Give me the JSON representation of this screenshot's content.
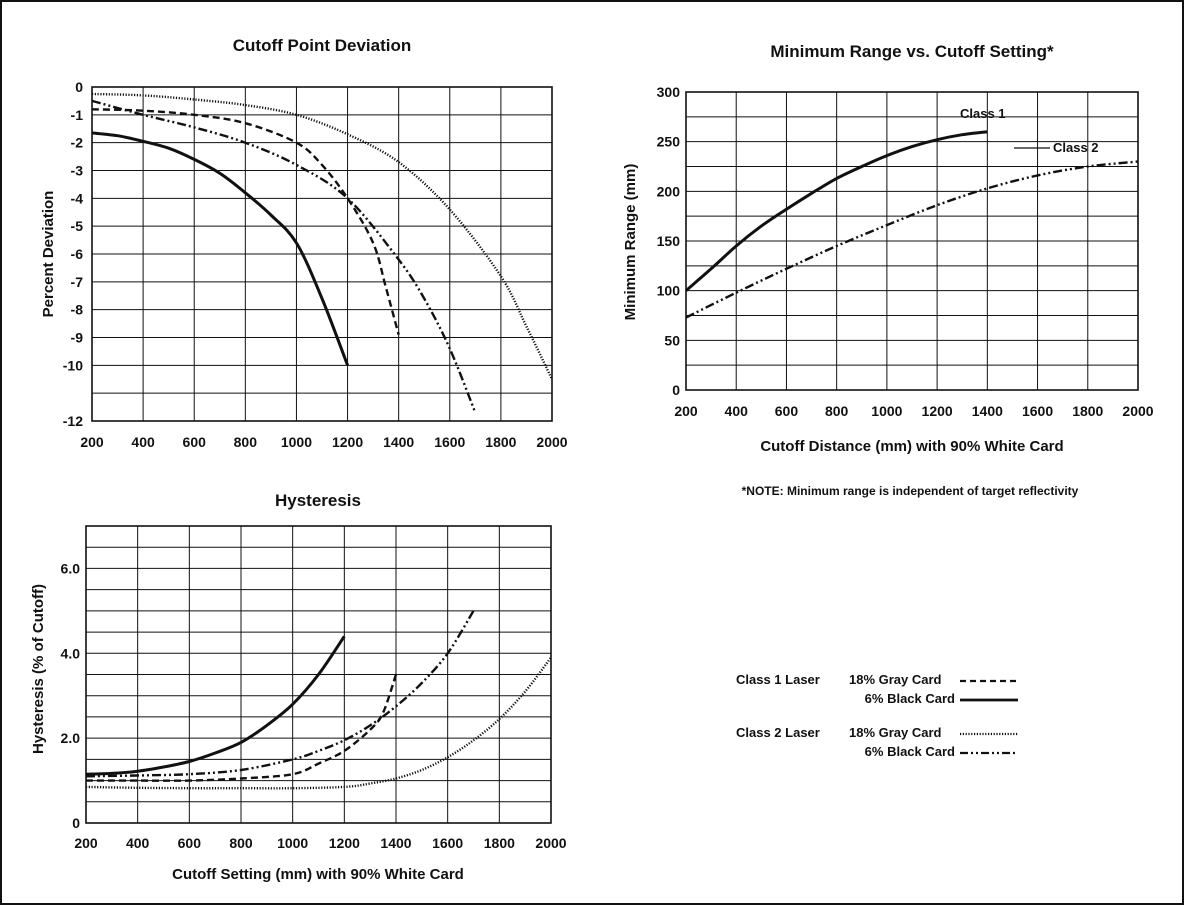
{
  "chart_data": [
    {
      "type": "line",
      "title": "Cutoff Point Deviation",
      "xlabel": "",
      "ylabel": "Percent Deviation",
      "xlim": [
        200,
        2000
      ],
      "ylim": [
        -12,
        0
      ],
      "xticks": [
        "200",
        "400",
        "600",
        "800",
        "1000",
        "1200",
        "1400",
        "1600",
        "1800",
        "2000"
      ],
      "yticks": [
        "0",
        "-1",
        "-2",
        "-3",
        "-4",
        "-5",
        "-6",
        "-7",
        "-8",
        "-9",
        "-10",
        "-12"
      ],
      "grid": true,
      "series": [
        {
          "name": "Class 1 Laser 18% Gray Card",
          "style": "dashed",
          "x": [
            200,
            400,
            600,
            800,
            1000,
            1100,
            1200,
            1300,
            1350,
            1400
          ],
          "y": [
            -0.8,
            -0.85,
            -1.0,
            -1.3,
            -2.0,
            -2.8,
            -4.0,
            -5.6,
            -7.2,
            -8.9
          ]
        },
        {
          "name": "Class 1 Laser 6% Black Card",
          "style": "solid",
          "x": [
            200,
            300,
            400,
            500,
            600,
            700,
            800,
            900,
            1000,
            1100,
            1200
          ],
          "y": [
            -1.65,
            -1.75,
            -1.95,
            -2.2,
            -2.6,
            -3.1,
            -3.8,
            -4.6,
            -5.6,
            -7.6,
            -10.0
          ]
        },
        {
          "name": "Class 2 Laser 18% Gray Card",
          "style": "dotted",
          "x": [
            200,
            400,
            600,
            800,
            1000,
            1200,
            1400,
            1600,
            1800,
            1900,
            2000
          ],
          "y": [
            -0.25,
            -0.3,
            -0.45,
            -0.65,
            -1.0,
            -1.7,
            -2.7,
            -4.4,
            -6.8,
            -8.6,
            -10.5
          ]
        },
        {
          "name": "Class 2 Laser 6% Black Card",
          "style": "dashdotdot",
          "x": [
            200,
            400,
            600,
            800,
            1000,
            1200,
            1400,
            1500,
            1600,
            1700
          ],
          "y": [
            -0.5,
            -1.0,
            -1.45,
            -2.0,
            -2.8,
            -4.0,
            -6.2,
            -7.6,
            -9.4,
            -11.7
          ]
        }
      ]
    },
    {
      "type": "line",
      "title": "Minimum Range vs. Cutoff Setting*",
      "xlabel": "Cutoff Distance (mm) with 90% White Card",
      "ylabel": "Minimum Range (mm)",
      "xlim": [
        200,
        2000
      ],
      "ylim": [
        0,
        300
      ],
      "xticks": [
        "200",
        "400",
        "600",
        "800",
        "1000",
        "1200",
        "1400",
        "1600",
        "1800",
        "2000"
      ],
      "yticks": [
        "0",
        "50",
        "100",
        "150",
        "200",
        "250",
        "300"
      ],
      "grid": true,
      "note": "*NOTE: Minimum range is independent of target reflectivity",
      "series": [
        {
          "name": "Class 1",
          "style": "solid",
          "x": [
            200,
            300,
            400,
            500,
            600,
            700,
            800,
            900,
            1000,
            1100,
            1200,
            1300,
            1400
          ],
          "y": [
            100,
            122,
            145,
            165,
            182,
            198,
            213,
            225,
            236,
            245,
            252,
            257,
            260
          ]
        },
        {
          "name": "Class 2",
          "style": "dashdotdot",
          "x": [
            200,
            400,
            600,
            800,
            1000,
            1200,
            1400,
            1600,
            1800,
            2000
          ],
          "y": [
            73,
            98,
            122,
            145,
            166,
            186,
            203,
            216,
            225,
            230
          ]
        }
      ]
    },
    {
      "type": "line",
      "title": "Hysteresis",
      "xlabel": "Cutoff Setting (mm) with 90% White Card",
      "ylabel": "Hysteresis (% of Cutoff)",
      "xlim": [
        200,
        2000
      ],
      "ylim": [
        0,
        7
      ],
      "xticks": [
        "200",
        "400",
        "600",
        "800",
        "1000",
        "1200",
        "1400",
        "1600",
        "1800",
        "2000"
      ],
      "yticks": [
        "0",
        "2.0",
        "4.0",
        "6.0"
      ],
      "grid": true,
      "series": [
        {
          "name": "Class 1 Laser 18% Gray Card",
          "style": "dashed",
          "x": [
            200,
            400,
            600,
            800,
            1000,
            1100,
            1200,
            1300,
            1350,
            1400
          ],
          "y": [
            1.0,
            1.0,
            1.0,
            1.05,
            1.15,
            1.4,
            1.7,
            2.2,
            2.6,
            3.5
          ]
        },
        {
          "name": "Class 1 Laser 6% Black Card",
          "style": "solid",
          "x": [
            200,
            300,
            400,
            500,
            600,
            700,
            800,
            900,
            1000,
            1100,
            1200
          ],
          "y": [
            1.15,
            1.17,
            1.22,
            1.32,
            1.45,
            1.65,
            1.9,
            2.3,
            2.8,
            3.5,
            4.4
          ]
        },
        {
          "name": "Class 2 Laser 18% Gray Card",
          "style": "dotted",
          "x": [
            200,
            400,
            600,
            800,
            1000,
            1200,
            1300,
            1400,
            1500,
            1600,
            1700,
            1800,
            1900,
            2000
          ],
          "y": [
            0.85,
            0.83,
            0.82,
            0.82,
            0.82,
            0.85,
            0.93,
            1.05,
            1.25,
            1.55,
            1.95,
            2.45,
            3.1,
            3.9
          ]
        },
        {
          "name": "Class 2 Laser 6% Black Card",
          "style": "dashdotdot",
          "x": [
            200,
            400,
            600,
            800,
            1000,
            1100,
            1200,
            1300,
            1400,
            1500,
            1600,
            1700
          ],
          "y": [
            1.1,
            1.12,
            1.15,
            1.25,
            1.5,
            1.7,
            1.95,
            2.3,
            2.75,
            3.3,
            4.0,
            5.0
          ]
        }
      ]
    }
  ],
  "legend": {
    "class1_label": "Class 1 Laser",
    "class2_label": "Class 2 Laser",
    "gray_card": "18% Gray Card",
    "black_card": "6% Black Card"
  }
}
